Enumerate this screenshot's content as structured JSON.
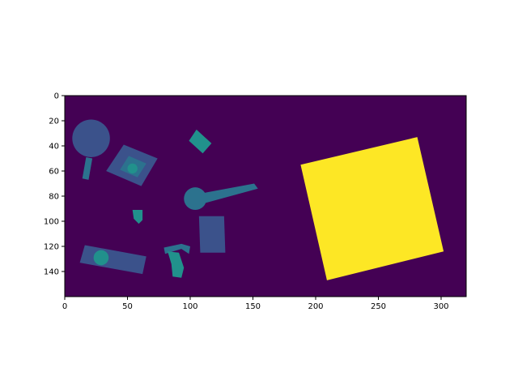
{
  "chart_data": {
    "type": "heatmap",
    "title": "",
    "xlabel": "",
    "ylabel": "",
    "xlim": [
      0,
      320
    ],
    "ylim": [
      160,
      0
    ],
    "y_inverted": true,
    "grid": false,
    "colormap": "viridis",
    "background_value": 0,
    "x_ticks": [
      0,
      50,
      100,
      150,
      200,
      250,
      300
    ],
    "y_ticks": [
      0,
      20,
      40,
      60,
      80,
      100,
      120,
      140
    ],
    "regions": [
      {
        "id": "large-square",
        "shape": "polygon",
        "points": [
          [
            188,
            55
          ],
          [
            281,
            33
          ],
          [
            302,
            124
          ],
          [
            209,
            147
          ]
        ],
        "color": "#fde725"
      },
      {
        "id": "round-head",
        "shape": "circle",
        "cx": 21,
        "cy": 34,
        "r": 15,
        "color": "#3b528b"
      },
      {
        "id": "round-handle",
        "shape": "polygon",
        "points": [
          [
            17,
            49
          ],
          [
            22,
            50
          ],
          [
            19,
            67
          ],
          [
            14,
            66
          ]
        ],
        "color": "#2c728e"
      },
      {
        "id": "tilted-square",
        "shape": "polygon",
        "points": [
          [
            33,
            60
          ],
          [
            47,
            39
          ],
          [
            74,
            50
          ],
          [
            61,
            72
          ]
        ],
        "color": "#3b528b"
      },
      {
        "id": "tilted-square-inner",
        "shape": "polygon",
        "points": [
          [
            44,
            59
          ],
          [
            51,
            48
          ],
          [
            65,
            54
          ],
          [
            58,
            65
          ]
        ],
        "color": "#2c728e"
      },
      {
        "id": "tilted-square-dot",
        "shape": "circle",
        "cx": 54,
        "cy": 58,
        "r": 4,
        "color": "#21918c"
      },
      {
        "id": "small-diamond",
        "shape": "polygon",
        "points": [
          [
            99,
            36
          ],
          [
            105,
            27
          ],
          [
            117,
            38
          ],
          [
            110,
            46
          ]
        ],
        "color": "#21918c"
      },
      {
        "id": "racket-head",
        "shape": "circle",
        "cx": 104,
        "cy": 82,
        "r": 9,
        "color": "#2c728e"
      },
      {
        "id": "racket-handle",
        "shape": "polygon",
        "points": [
          [
            108,
            78
          ],
          [
            151,
            70
          ],
          [
            154,
            74
          ],
          [
            110,
            86
          ]
        ],
        "color": "#2c728e"
      },
      {
        "id": "small-blob",
        "shape": "polygon",
        "points": [
          [
            54,
            91
          ],
          [
            62,
            91
          ],
          [
            62,
            99
          ],
          [
            59,
            102
          ],
          [
            55,
            98
          ]
        ],
        "color": "#21918c"
      },
      {
        "id": "upright-rect",
        "shape": "polygon",
        "points": [
          [
            107,
            96
          ],
          [
            127,
            96
          ],
          [
            128,
            125
          ],
          [
            108,
            125
          ]
        ],
        "color": "#3b528b"
      },
      {
        "id": "bottom-rect",
        "shape": "polygon",
        "points": [
          [
            12,
            133
          ],
          [
            16,
            119
          ],
          [
            65,
            128
          ],
          [
            62,
            142
          ]
        ],
        "color": "#3b528b"
      },
      {
        "id": "bottom-rect-dot",
        "shape": "circle",
        "cx": 29,
        "cy": 129,
        "r": 6,
        "color": "#21918c"
      },
      {
        "id": "bar-top",
        "shape": "polygon",
        "points": [
          [
            79,
            121
          ],
          [
            93,
            118
          ],
          [
            100,
            120
          ],
          [
            99,
            126
          ],
          [
            93,
            122
          ],
          [
            80,
            126
          ]
        ],
        "color": "#2c728e"
      },
      {
        "id": "bar-leg",
        "shape": "polygon",
        "points": [
          [
            82,
            124
          ],
          [
            91,
            125
          ],
          [
            95,
            137
          ],
          [
            93,
            145
          ],
          [
            86,
            144
          ],
          [
            85,
            134
          ]
        ],
        "color": "#21918c"
      }
    ]
  }
}
